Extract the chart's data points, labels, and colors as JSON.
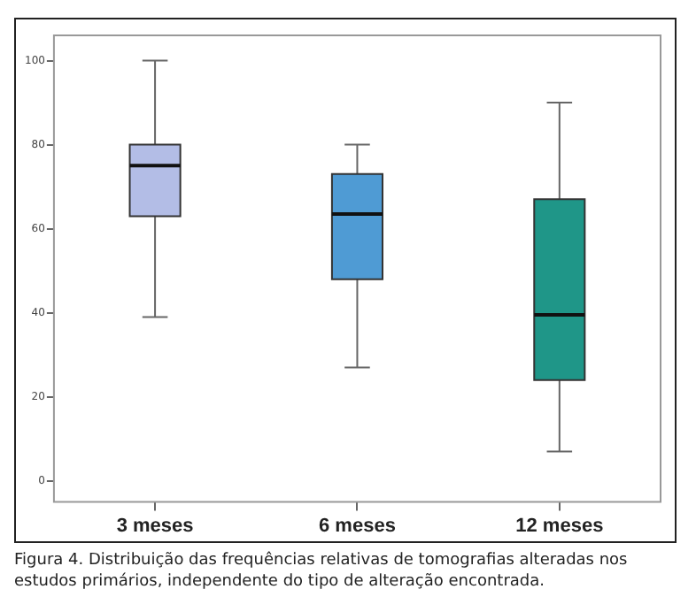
{
  "chart_data": {
    "type": "box",
    "categories": [
      "3 meses",
      "6 meses",
      "12 meses"
    ],
    "boxes": [
      {
        "low": 39,
        "q1": 63,
        "median": 75,
        "q3": 80,
        "high": 100
      },
      {
        "low": 27,
        "q1": 48,
        "median": 63.5,
        "q3": 73,
        "high": 80
      },
      {
        "low": 7,
        "q1": 24,
        "median": 39.5,
        "q3": 67,
        "high": 90
      }
    ],
    "colors": [
      "#b3bde6",
      "#4f9bd4",
      "#1f9688"
    ],
    "ylim": [
      -5,
      106
    ],
    "yticks": [
      0,
      20,
      40,
      60,
      80,
      100
    ],
    "grid": false,
    "legend": false,
    "annotations": [
      "Figura 4. Distribuição das frequências relativas de tomografias alteradas nos estudos primários, independente do tipo de alteração encontrada."
    ]
  }
}
